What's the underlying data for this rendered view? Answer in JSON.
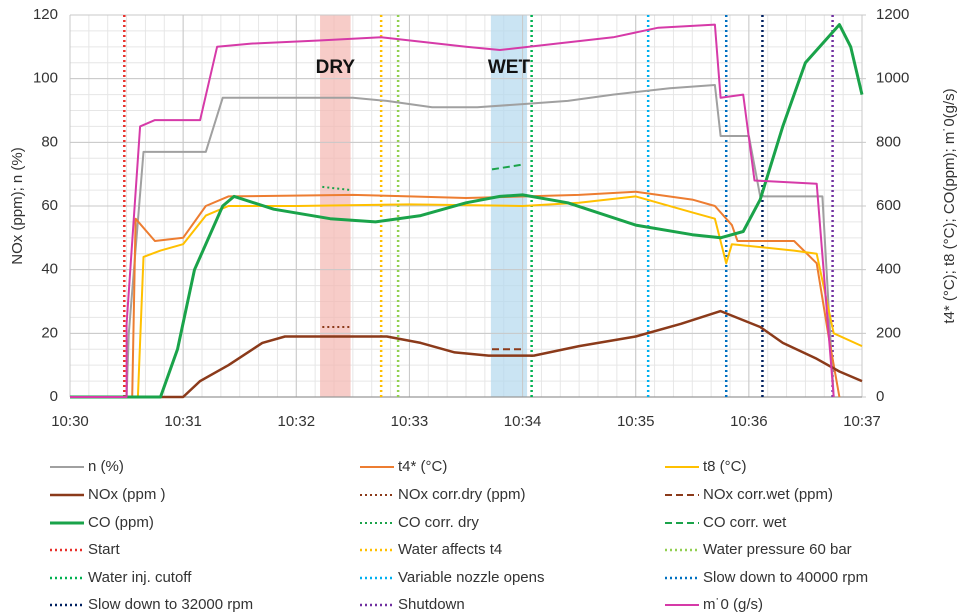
{
  "chart_data": {
    "type": "line",
    "y_label": "NOx (ppm); n (%)",
    "y2_label": "t4* (°C); t8 (°C); CO(ppm); m˙0(g/s)",
    "xlim": [
      30,
      37
    ],
    "xticks": [
      {
        "value": 30,
        "label": "10:30"
      },
      {
        "value": 31,
        "label": "10:31"
      },
      {
        "value": 32,
        "label": "10:32"
      },
      {
        "value": 33,
        "label": "10:33"
      },
      {
        "value": 34,
        "label": "10:34"
      },
      {
        "value": 35,
        "label": "10:35"
      },
      {
        "value": 36,
        "label": "10:36"
      },
      {
        "value": 37,
        "label": "10:37"
      }
    ],
    "ylim": [
      0,
      120
    ],
    "yticks": [
      0,
      20,
      40,
      60,
      80,
      100,
      120
    ],
    "y2lim": [
      0,
      1200
    ],
    "y2ticks": [
      0,
      200,
      400,
      600,
      800,
      1000,
      1200
    ],
    "grid": true,
    "minor_grid": true,
    "bands": [
      {
        "label": "DRY",
        "color": "#f4b6b0",
        "range": [
          32.21,
          32.48
        ]
      },
      {
        "label": "WET",
        "color": "#b4d8ee",
        "range": [
          33.72,
          34.04
        ]
      }
    ],
    "series": [
      {
        "name": "n (%)",
        "color": "#a0a0a0",
        "style": "solid",
        "width": 2,
        "x": [
          30,
          30.5,
          30.52,
          30.65,
          31.2,
          31.35,
          31.8,
          32.5,
          32.8,
          33.2,
          33.6,
          34,
          34.4,
          34.8,
          35.3,
          35.7,
          35.75,
          36,
          36.1,
          36.65,
          36.75
        ],
        "values": [
          0,
          0,
          20,
          77,
          77,
          94,
          94,
          94,
          93,
          91,
          91,
          92,
          93,
          95,
          97,
          98,
          82,
          82,
          63,
          63,
          0
        ]
      },
      {
        "name": "t4* (°C)",
        "color": "#ed7d31",
        "style": "solid",
        "width": 2,
        "axis": "y2",
        "x": [
          30,
          30.55,
          30.58,
          30.75,
          31,
          31.2,
          31.4,
          32.5,
          33,
          33.5,
          34.5,
          35,
          35.5,
          35.7,
          35.85,
          35.9,
          36.4,
          36.6,
          36.7,
          36.8
        ],
        "values": [
          0,
          0,
          560,
          490,
          500,
          600,
          630,
          635,
          630,
          625,
          635,
          645,
          620,
          600,
          540,
          490,
          490,
          420,
          200,
          0
        ]
      },
      {
        "name": "t8 (°C)",
        "color": "#ffc000",
        "style": "solid",
        "width": 2,
        "axis": "y2",
        "x": [
          30,
          30.6,
          30.65,
          30.8,
          31,
          31.2,
          31.4,
          32,
          33,
          34,
          34.5,
          35,
          35.5,
          35.7,
          35.8,
          35.85,
          36.4,
          36.6,
          36.75,
          37
        ],
        "values": [
          0,
          0,
          440,
          460,
          480,
          570,
          600,
          600,
          605,
          600,
          610,
          630,
          580,
          560,
          420,
          480,
          460,
          450,
          200,
          160
        ]
      },
      {
        "name": "NOx (ppm )",
        "color": "#8b3a1a",
        "style": "solid",
        "width": 2.5,
        "x": [
          30,
          31,
          31.15,
          31.4,
          31.7,
          31.9,
          32.8,
          33.1,
          33.4,
          33.7,
          34.1,
          34.5,
          35,
          35.4,
          35.75,
          36.1,
          36.3,
          36.6,
          36.8,
          37
        ],
        "values": [
          0,
          0,
          5,
          10,
          17,
          19,
          19,
          17,
          14,
          13,
          13,
          16,
          19,
          23,
          27,
          22,
          17,
          12,
          8,
          5
        ]
      },
      {
        "name": "NOx corr.dry (ppm)",
        "color": "#8b3a1a",
        "style": "dotted",
        "width": 2,
        "x": [
          32.23,
          32.49
        ],
        "values": [
          22,
          22
        ]
      },
      {
        "name": "NOx corr.wet (ppm)",
        "color": "#8b3a1a",
        "style": "dashed",
        "width": 2,
        "x": [
          33.73,
          34.0
        ],
        "values": [
          15,
          15
        ]
      },
      {
        "name": "CO (ppm)",
        "color": "#1aa34a",
        "style": "solid",
        "width": 3,
        "axis": "y2",
        "x": [
          30,
          30.8,
          30.95,
          31.1,
          31.35,
          31.45,
          31.8,
          32.3,
          32.7,
          33.1,
          33.5,
          33.8,
          34,
          34.4,
          35,
          35.5,
          35.75,
          35.95,
          36.1,
          36.3,
          36.5,
          36.8,
          36.9,
          37
        ],
        "values": [
          0,
          0,
          150,
          400,
          600,
          630,
          590,
          560,
          550,
          570,
          610,
          630,
          635,
          610,
          540,
          510,
          500,
          520,
          620,
          850,
          1050,
          1170,
          1100,
          950
        ]
      },
      {
        "name": "CO corr. dry",
        "color": "#1aa34a",
        "style": "dotted",
        "width": 2,
        "axis": "y2",
        "x": [
          32.23,
          32.49
        ],
        "values": [
          660,
          650
        ]
      },
      {
        "name": "CO corr. wet",
        "color": "#1aa34a",
        "style": "dashed",
        "width": 2,
        "axis": "y2",
        "x": [
          33.73,
          34.0
        ],
        "values": [
          715,
          730
        ]
      },
      {
        "name": "Start",
        "color": "#e8302a",
        "style": "dotted",
        "width": 2.5,
        "event_x": 30.48
      },
      {
        "name": "Water affects t4",
        "color": "#ffc000",
        "style": "dotted",
        "width": 2.5,
        "event_x": 32.75
      },
      {
        "name": "Water pressure 60 bar",
        "color": "#92d050",
        "style": "dotted",
        "width": 2.5,
        "event_x": 32.9
      },
      {
        "name": "Water inj. cutoff",
        "color": "#00b050",
        "style": "dotted",
        "width": 2.5,
        "event_x": 34.08
      },
      {
        "name": "Variable nozzle opens",
        "color": "#00b0f0",
        "style": "dotted",
        "width": 2.5,
        "event_x": 35.11
      },
      {
        "name": "Slow down to 40000 rpm",
        "color": "#0070c0",
        "style": "dotted",
        "width": 2.5,
        "event_x": 35.8
      },
      {
        "name": "Slow down to 32000 rpm",
        "color": "#002060",
        "style": "dotted",
        "width": 2.5,
        "event_x": 36.12
      },
      {
        "name": "Shutdown",
        "color": "#7030a0",
        "style": "dotted",
        "width": 2.5,
        "event_x": 36.74
      },
      {
        "name": "m˙0 (g/s)",
        "color": "#d63aa8",
        "style": "solid",
        "width": 2,
        "axis": "y2",
        "x": [
          30,
          30.5,
          30.5,
          30.62,
          30.75,
          31.15,
          31.3,
          31.6,
          32.2,
          32.75,
          33.5,
          33.8,
          34.3,
          34.8,
          35.2,
          35.7,
          35.75,
          35.95,
          36.05,
          36.6,
          36.75
        ],
        "values": [
          0,
          0,
          230,
          850,
          870,
          870,
          1100,
          1110,
          1120,
          1130,
          1100,
          1090,
          1110,
          1130,
          1160,
          1170,
          940,
          950,
          680,
          670,
          0
        ]
      }
    ]
  }
}
